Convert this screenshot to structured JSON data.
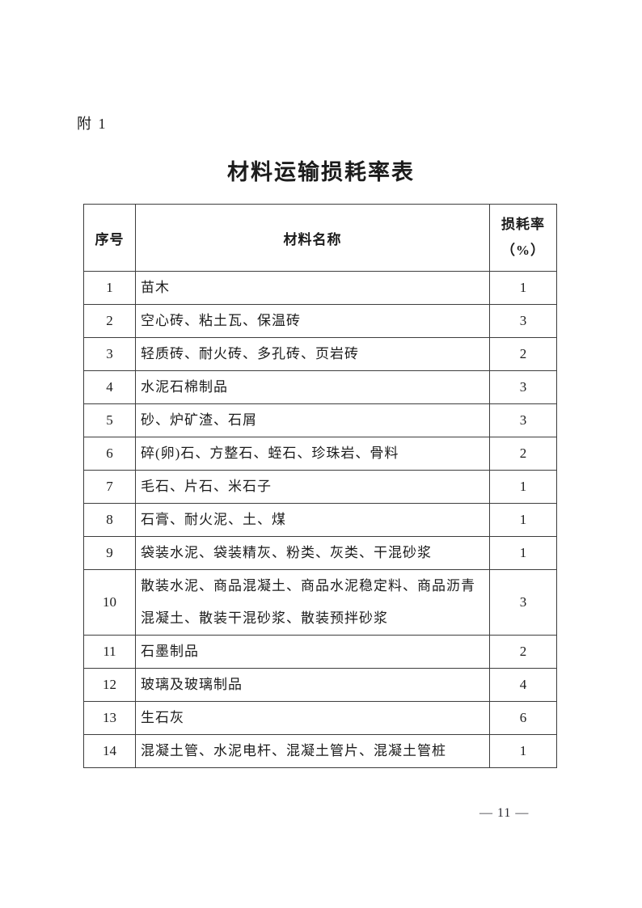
{
  "page": {
    "attachment_label": "附 1",
    "page_number": "— 11 —"
  },
  "document": {
    "title": "材料运输损耗率表"
  },
  "table": {
    "columns": {
      "index": "序号",
      "material": "材料名称",
      "rate_line1": "损耗率",
      "rate_line2": "（%）"
    },
    "rows": [
      {
        "no": "1",
        "name": "苗木",
        "rate": "1"
      },
      {
        "no": "2",
        "name": "空心砖、粘土瓦、保温砖",
        "rate": "3"
      },
      {
        "no": "3",
        "name": "轻质砖、耐火砖、多孔砖、页岩砖",
        "rate": "2"
      },
      {
        "no": "4",
        "name": "水泥石棉制品",
        "rate": "3"
      },
      {
        "no": "5",
        "name": "砂、炉矿渣、石屑",
        "rate": "3"
      },
      {
        "no": "6",
        "name": "碎(卵)石、方整石、蛭石、珍珠岩、骨料",
        "rate": "2"
      },
      {
        "no": "7",
        "name": "毛石、片石、米石子",
        "rate": "1"
      },
      {
        "no": "8",
        "name": "石膏、耐火泥、土、煤",
        "rate": "1"
      },
      {
        "no": "9",
        "name": "袋装水泥、袋装精灰、粉类、灰类、干混砂浆",
        "rate": "1"
      },
      {
        "no": "10",
        "name": "散装水泥、商品混凝土、商品水泥稳定料、商品沥青混凝土、散装干混砂浆、散装预拌砂浆",
        "rate": "3"
      },
      {
        "no": "11",
        "name": "石墨制品",
        "rate": "2"
      },
      {
        "no": "12",
        "name": "玻璃及玻璃制品",
        "rate": "4"
      },
      {
        "no": "13",
        "name": "生石灰",
        "rate": "6"
      },
      {
        "no": "14",
        "name": "混凝土管、水泥电杆、混凝土管片、混凝土管桩",
        "rate": "1"
      }
    ]
  },
  "colors": {
    "text": "#1c1c1c",
    "border": "#3d3d3d",
    "background": "#ffffff"
  }
}
